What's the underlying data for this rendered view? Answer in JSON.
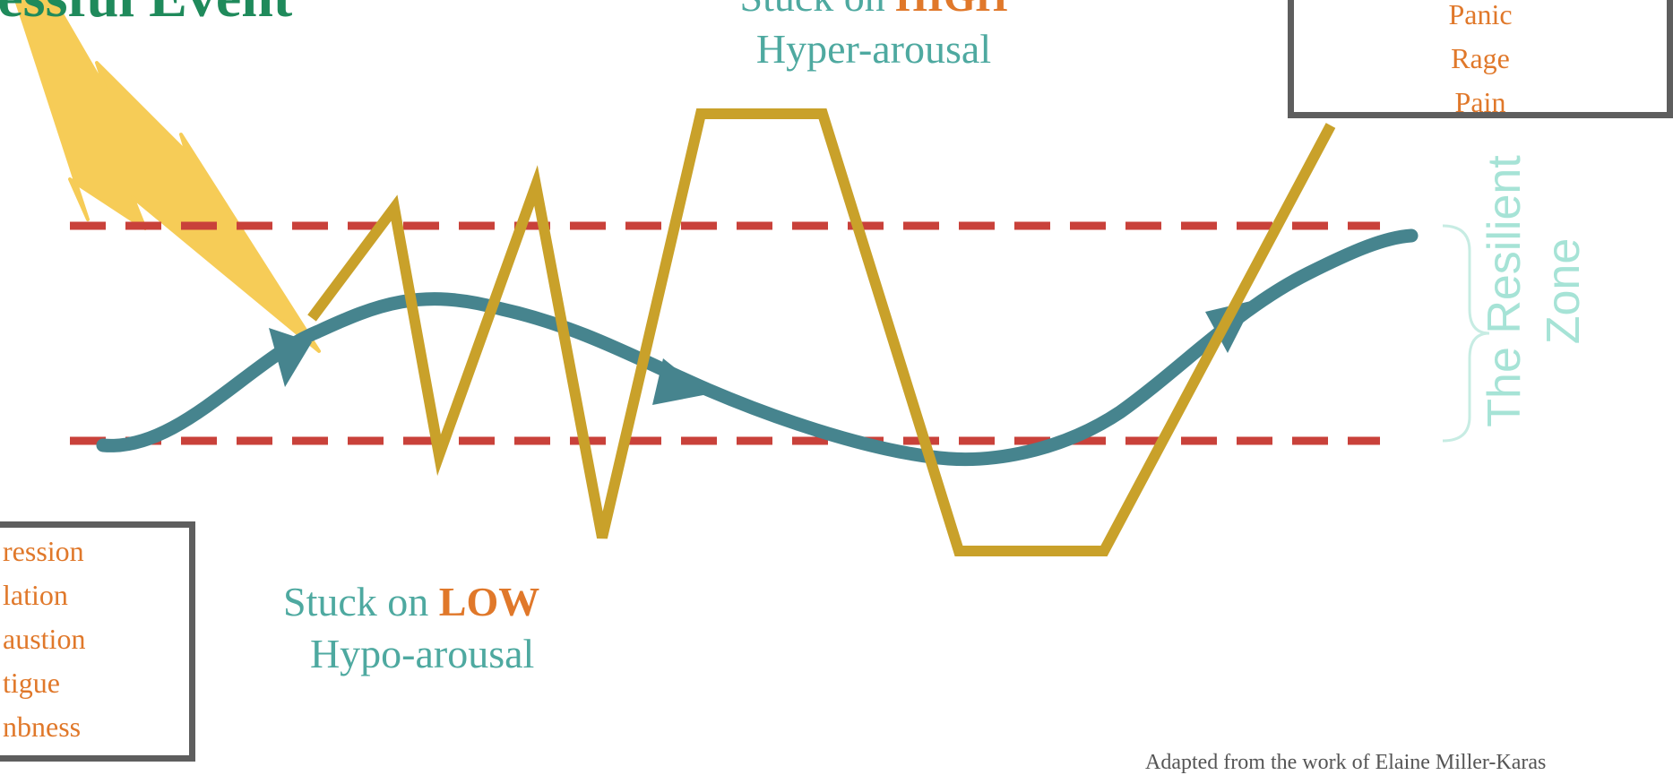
{
  "colors": {
    "title_green": "#1f8a5b",
    "teal_label": "#4ea9a0",
    "orange_text": "#e0782a",
    "dashed_red": "#c9413a",
    "teal_curve": "#46848e",
    "gold_line": "#c9a12a",
    "lightning": "#f6cc57",
    "box_border": "#5e5e5e",
    "zone_text": "#a6e3d6"
  },
  "diagram": {
    "title": "ressful Event",
    "high": {
      "prefix": "Stuck on ",
      "keyword": "HIGH",
      "subtitle": "Hyper-arousal",
      "symptoms": [
        "Panic",
        "Rage",
        "Pain"
      ]
    },
    "low": {
      "prefix": "Stuck on ",
      "keyword": "LOW",
      "subtitle": "Hypo-arousal",
      "symptoms": [
        "ression",
        "lation",
        "austion",
        "tigue",
        "nbness"
      ]
    },
    "zone": {
      "line1": "The Resilient",
      "line2": "Zone"
    },
    "credit": "Adapted from the work of Elaine Miller-Karas"
  }
}
